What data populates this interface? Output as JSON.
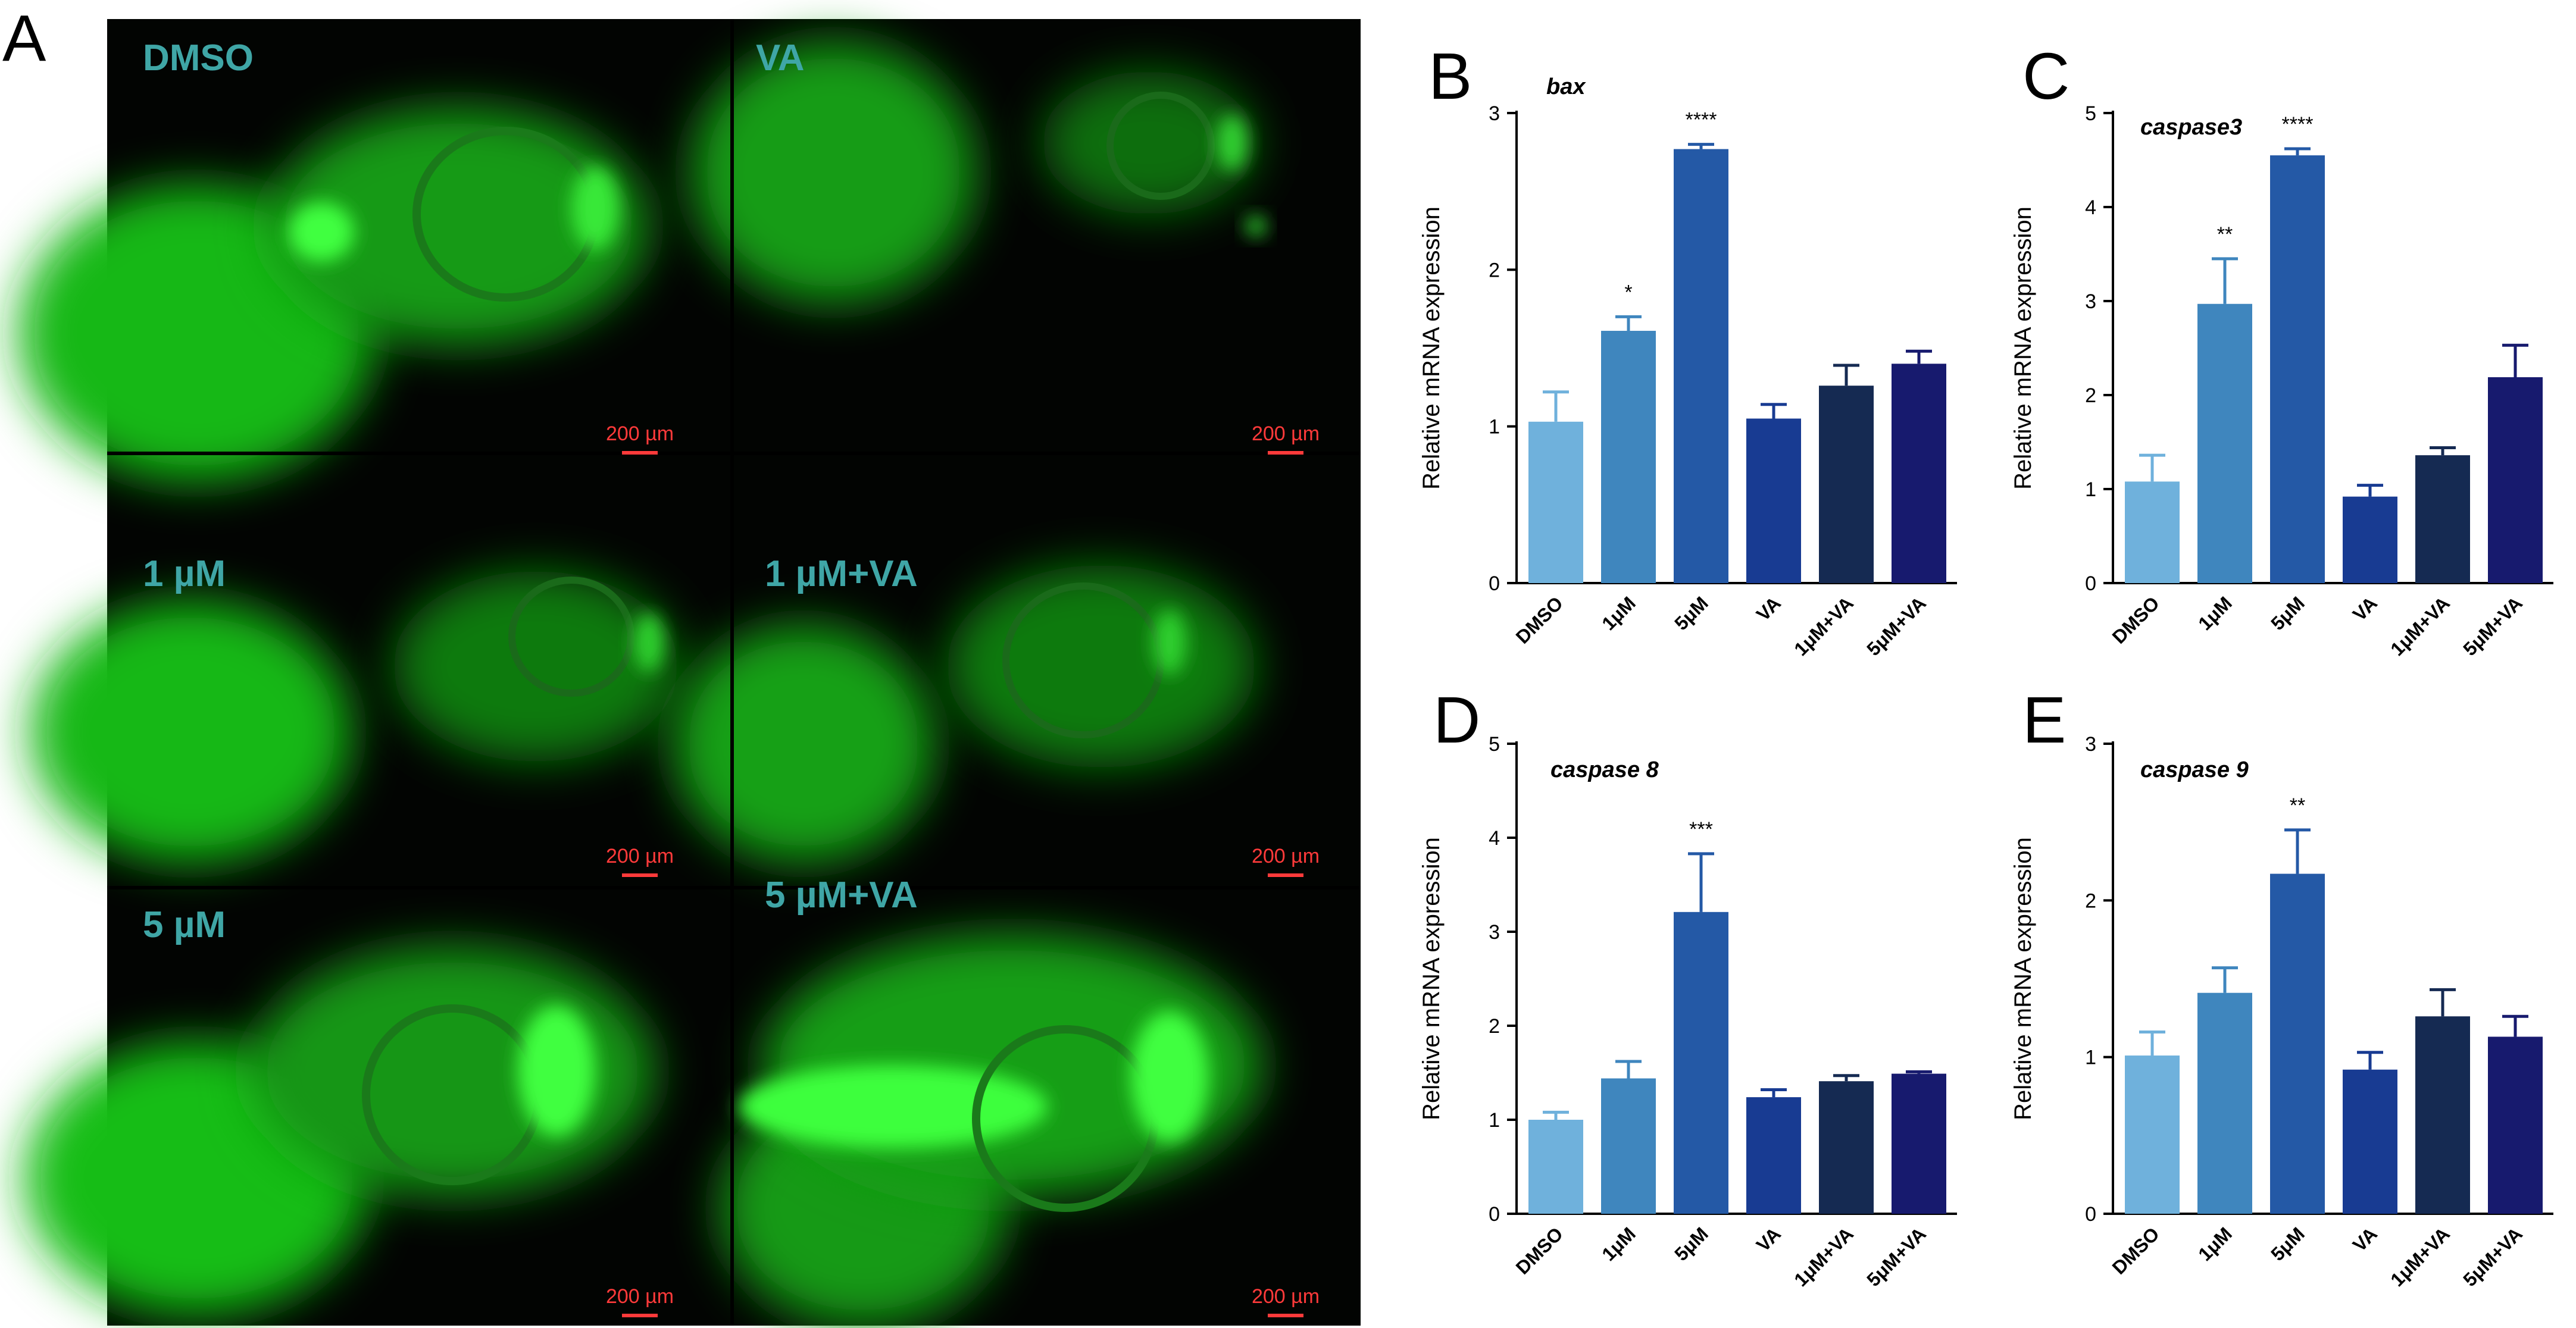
{
  "panel_letters": {
    "a": "A",
    "b": "B",
    "c": "C",
    "d": "D",
    "e": "E"
  },
  "microscopy": {
    "scale_bar_label": "200 µm",
    "panels": [
      {
        "label": "DMSO"
      },
      {
        "label": "VA"
      },
      {
        "label": "1 µM"
      },
      {
        "label": "1 µM+VA"
      },
      {
        "label": "5 µM"
      },
      {
        "label": "5 µM+VA"
      }
    ]
  },
  "colors": {
    "fluorescence": "#22e022",
    "label_text": "#3fa6a6",
    "scale_bar": "#ff3a3a",
    "bars": [
      "#6fb1dc",
      "#3f86be",
      "#2459a6",
      "#183b92",
      "#152a52",
      "#171a6e"
    ]
  },
  "chart_data": [
    {
      "panel": "B",
      "type": "bar",
      "title": "bax",
      "ylabel": "Relative mRNA  expression",
      "categories": [
        "DMSO",
        "1μM",
        "5μM",
        "VA",
        "1μM+VA",
        "5μM+VA"
      ],
      "values": [
        1.03,
        1.61,
        2.77,
        1.05,
        1.26,
        1.4
      ],
      "errors": [
        0.19,
        0.09,
        0.03,
        0.09,
        0.13,
        0.08
      ],
      "significance": [
        "",
        "*",
        "****",
        "",
        "",
        ""
      ],
      "ylim": [
        0,
        3
      ],
      "yticks": [
        "0",
        "1",
        "2",
        "3"
      ]
    },
    {
      "panel": "C",
      "type": "bar",
      "title": "caspase3",
      "ylabel": "Relative mRNA  expression",
      "categories": [
        "DMSO",
        "1μM",
        "5μM",
        "VA",
        "1μM+VA",
        "5μM+VA"
      ],
      "values": [
        1.08,
        2.97,
        4.55,
        0.92,
        1.36,
        2.19
      ],
      "errors": [
        0.28,
        0.48,
        0.07,
        0.12,
        0.08,
        0.34
      ],
      "significance": [
        "",
        "**",
        "****",
        "",
        "",
        ""
      ],
      "ylim": [
        0,
        5
      ],
      "yticks": [
        "0",
        "1",
        "2",
        "3",
        "4",
        "5"
      ]
    },
    {
      "panel": "D",
      "type": "bar",
      "title": "caspase 8",
      "ylabel": "Relative mRNA  expression",
      "categories": [
        "DMSO",
        "1μM",
        "5μM",
        "VA",
        "1μM+VA",
        "5μM+VA"
      ],
      "values": [
        1.0,
        1.44,
        3.21,
        1.24,
        1.41,
        1.49
      ],
      "errors": [
        0.08,
        0.18,
        0.62,
        0.08,
        0.06,
        0.02
      ],
      "significance": [
        "",
        "",
        "***",
        "",
        "",
        ""
      ],
      "ylim": [
        0,
        5
      ],
      "yticks": [
        "0",
        "1",
        "2",
        "3",
        "4",
        "5"
      ]
    },
    {
      "panel": "E",
      "type": "bar",
      "title": "caspase 9",
      "ylabel": "Relative mRNA  expression",
      "categories": [
        "DMSO",
        "1μM",
        "5μM",
        "VA",
        "1μM+VA",
        "5μM+VA"
      ],
      "values": [
        1.01,
        1.41,
        2.17,
        0.92,
        1.26,
        1.13
      ],
      "errors": [
        0.15,
        0.16,
        0.28,
        0.11,
        0.17,
        0.13
      ],
      "significance": [
        "",
        "",
        "**",
        "",
        "",
        ""
      ],
      "ylim": [
        0,
        3
      ],
      "yticks": [
        "0",
        "1",
        "2",
        "3"
      ]
    }
  ]
}
